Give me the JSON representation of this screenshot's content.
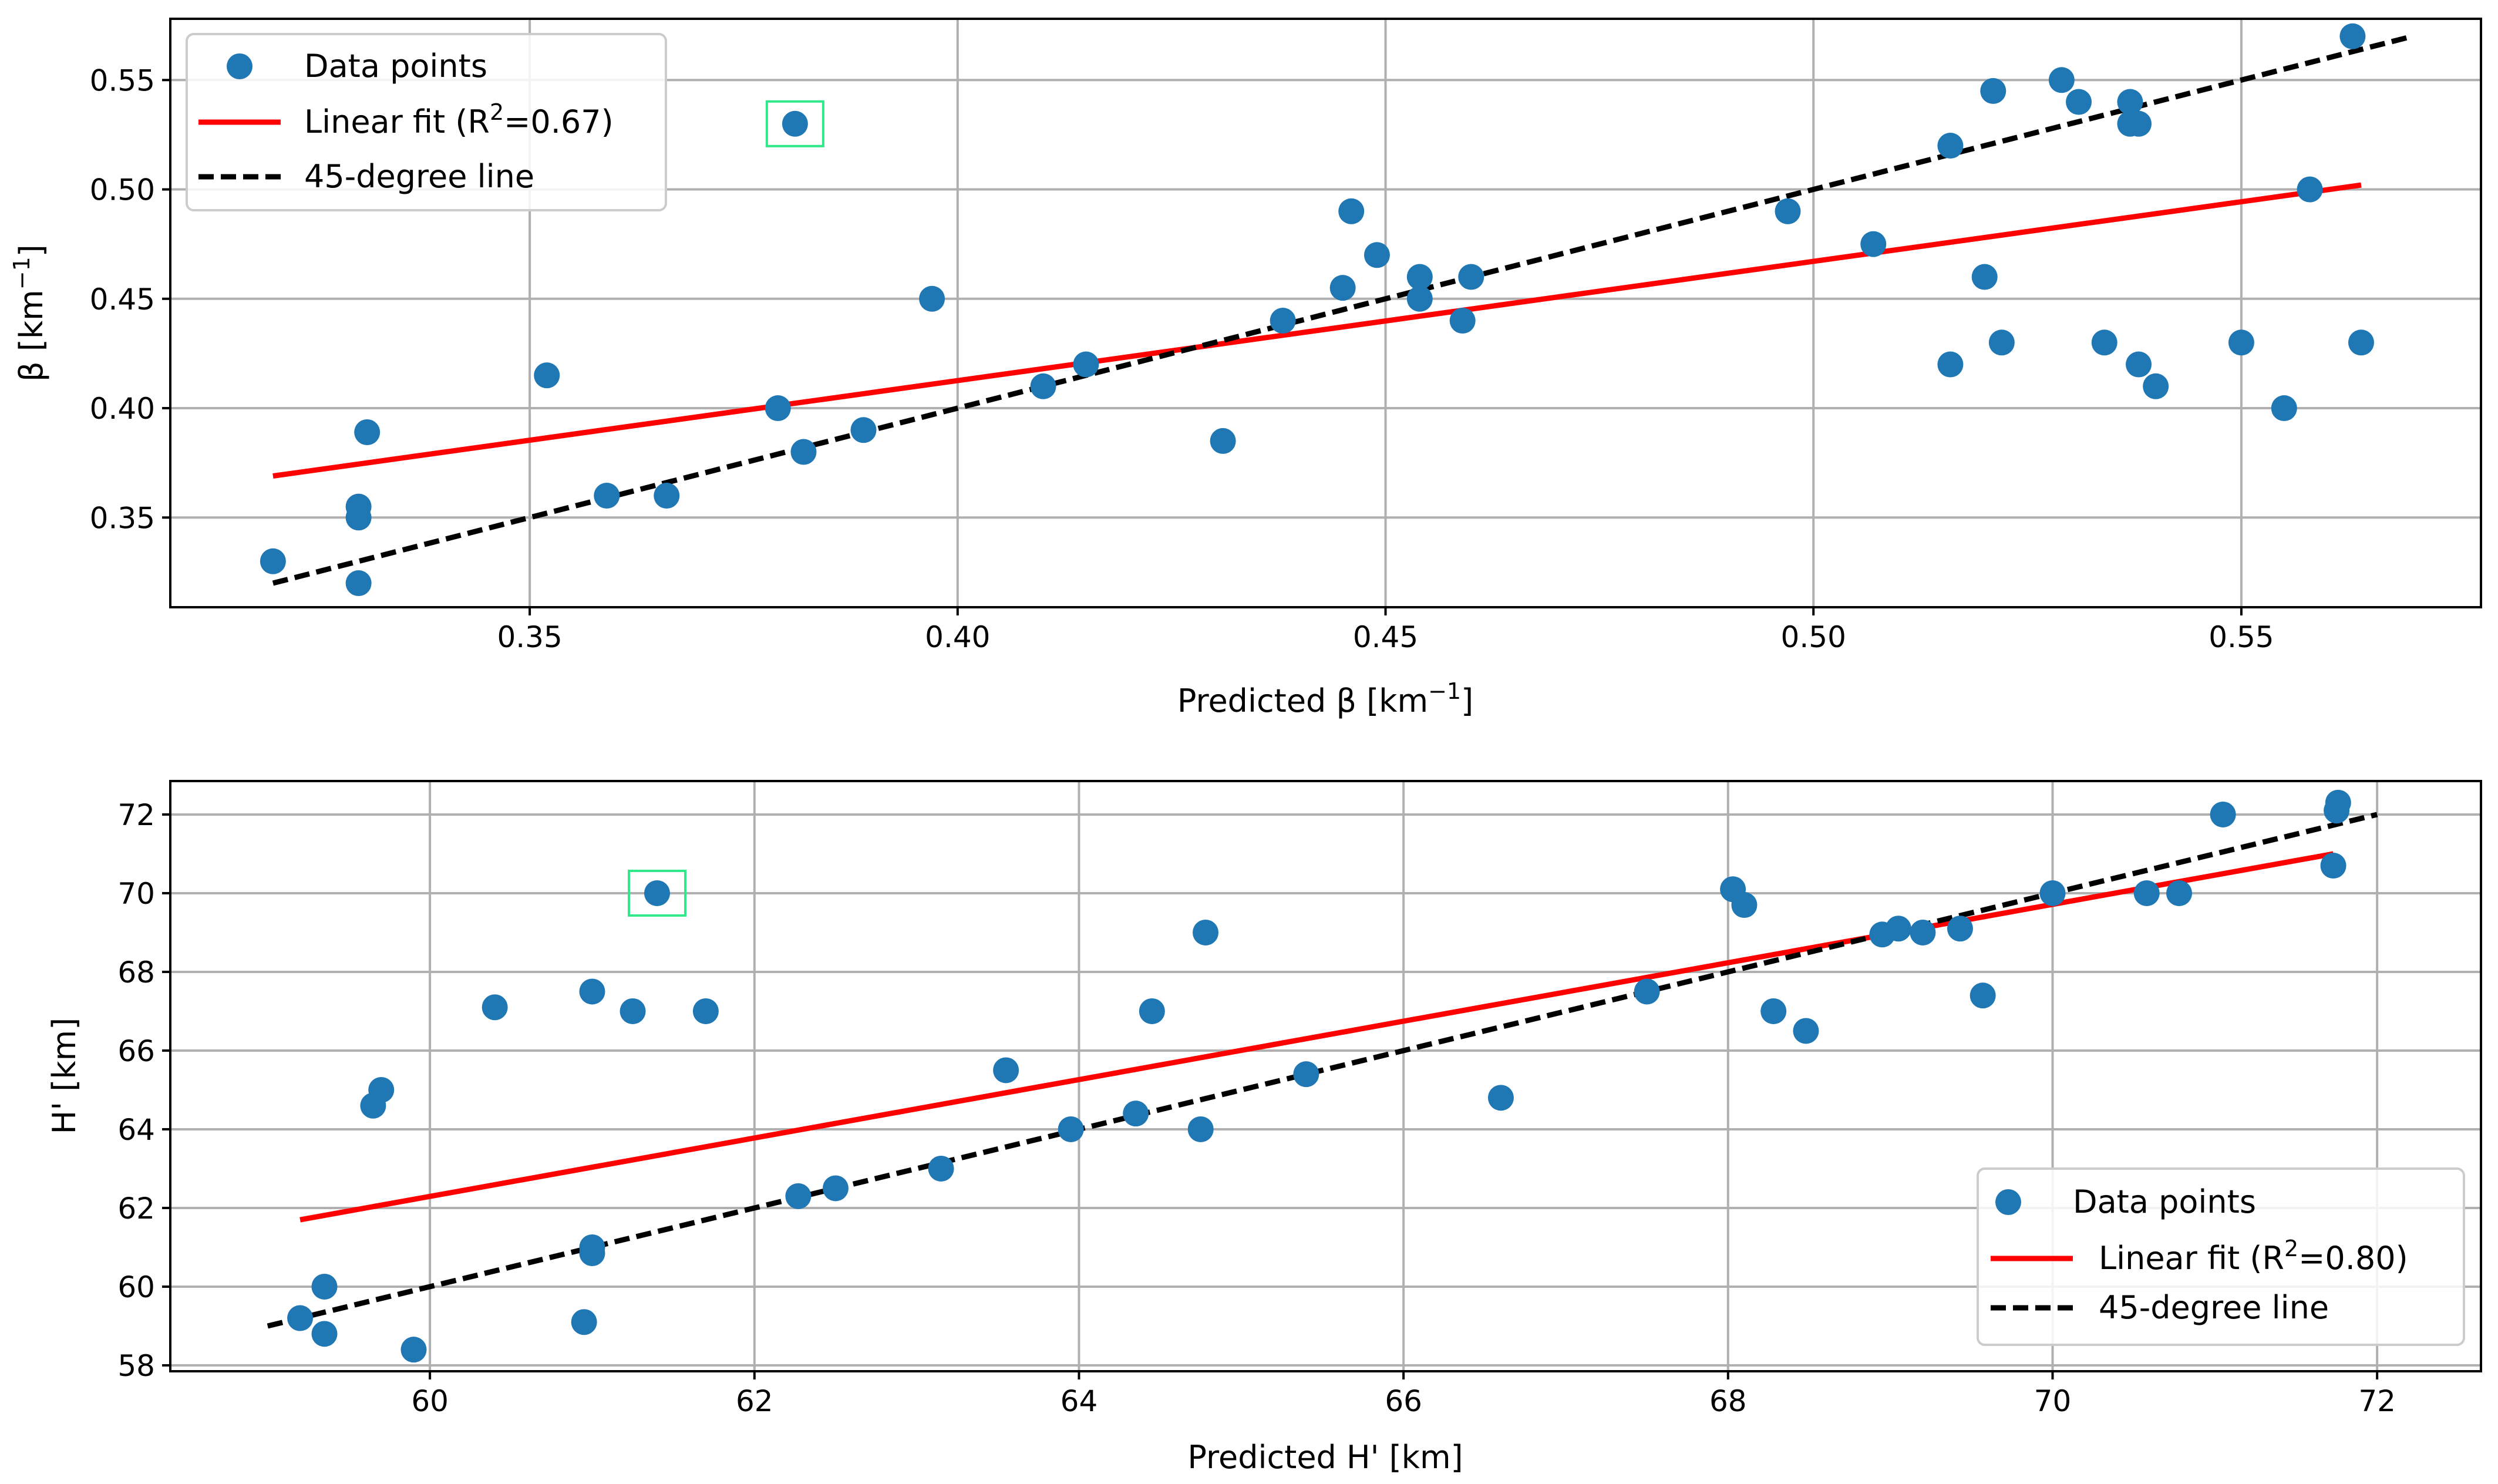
{
  "chart_data": [
    {
      "type": "scatter",
      "xlabel": "Predicted β [km",
      "xlabel_sup": "−1",
      "xlabel_end": "]",
      "ylabel": "β [km",
      "ylabel_sup": "−1",
      "ylabel_end": "]",
      "xlim": [
        0.308,
        0.578
      ],
      "ylim": [
        0.309,
        0.578
      ],
      "xticks": [
        0.35,
        0.4,
        0.45,
        0.5,
        0.55
      ],
      "xtick_labels": [
        "0.35",
        "0.40",
        "0.45",
        "0.50",
        "0.55"
      ],
      "yticks": [
        0.35,
        0.4,
        0.45,
        0.5,
        0.55
      ],
      "ytick_labels": [
        "0.35",
        "0.40",
        "0.45",
        "0.50",
        "0.55"
      ],
      "grid": true,
      "legend_position": "upper-left",
      "legend": {
        "scatter_label": "Data points",
        "fit_label": "Linear fit (R",
        "fit_sup": "2",
        "fit_label_end": "=0.67)",
        "ref_label": "45-degree line"
      },
      "colors": {
        "points": "#1f77b4",
        "fit": "#ff0000",
        "ref": "#000000",
        "highlight": "#2ee88a"
      },
      "points": [
        [
          0.32,
          0.33
        ],
        [
          0.33,
          0.32
        ],
        [
          0.33,
          0.35
        ],
        [
          0.33,
          0.355
        ],
        [
          0.331,
          0.389
        ],
        [
          0.352,
          0.415
        ],
        [
          0.359,
          0.36
        ],
        [
          0.366,
          0.36
        ],
        [
          0.379,
          0.4
        ],
        [
          0.382,
          0.38
        ],
        [
          0.381,
          0.53
        ],
        [
          0.389,
          0.39
        ],
        [
          0.397,
          0.45
        ],
        [
          0.41,
          0.41
        ],
        [
          0.415,
          0.42
        ],
        [
          0.431,
          0.385
        ],
        [
          0.438,
          0.44
        ],
        [
          0.445,
          0.455
        ],
        [
          0.446,
          0.49
        ],
        [
          0.449,
          0.47
        ],
        [
          0.454,
          0.45
        ],
        [
          0.454,
          0.46
        ],
        [
          0.459,
          0.44
        ],
        [
          0.46,
          0.46
        ],
        [
          0.497,
          0.49
        ],
        [
          0.507,
          0.475
        ],
        [
          0.516,
          0.42
        ],
        [
          0.516,
          0.52
        ],
        [
          0.52,
          0.46
        ],
        [
          0.521,
          0.545
        ],
        [
          0.522,
          0.43
        ],
        [
          0.529,
          0.55
        ],
        [
          0.531,
          0.54
        ],
        [
          0.534,
          0.43
        ],
        [
          0.537,
          0.54
        ],
        [
          0.537,
          0.53
        ],
        [
          0.538,
          0.53
        ],
        [
          0.538,
          0.42
        ],
        [
          0.54,
          0.41
        ],
        [
          0.55,
          0.43
        ],
        [
          0.555,
          0.4
        ],
        [
          0.558,
          0.5
        ],
        [
          0.563,
          0.57
        ],
        [
          0.564,
          0.43
        ]
      ],
      "fit_line": [
        [
          0.32,
          0.369
        ],
        [
          0.564,
          0.502
        ]
      ],
      "ref_line": [
        [
          0.32,
          0.32
        ],
        [
          0.57,
          0.57
        ]
      ],
      "highlight": [
        0.381,
        0.53
      ]
    },
    {
      "type": "scatter",
      "xlabel": "Predicted H' [km]",
      "ylabel": "H' [km]",
      "xlim": [
        58.4,
        72.64
      ],
      "ylim": [
        57.85,
        72.85
      ],
      "xticks": [
        60,
        62,
        64,
        66,
        68,
        70,
        72
      ],
      "xtick_labels": [
        "60",
        "62",
        "64",
        "66",
        "68",
        "70",
        "72"
      ],
      "yticks": [
        58,
        60,
        62,
        64,
        66,
        68,
        70,
        72
      ],
      "ytick_labels": [
        "58",
        "60",
        "62",
        "64",
        "66",
        "68",
        "70",
        "72"
      ],
      "grid": true,
      "legend_position": "lower-right",
      "legend": {
        "scatter_label": "Data points",
        "fit_label": "Linear fit (R",
        "fit_sup": "2",
        "fit_label_end": "=0.80)",
        "ref_label": "45-degree line"
      },
      "colors": {
        "points": "#1f77b4",
        "fit": "#ff0000",
        "ref": "#000000",
        "highlight": "#2ee88a"
      },
      "points": [
        [
          59.2,
          59.2
        ],
        [
          59.35,
          58.8
        ],
        [
          59.35,
          60.0
        ],
        [
          59.65,
          64.6
        ],
        [
          59.7,
          65.0
        ],
        [
          59.9,
          58.4
        ],
        [
          60.4,
          67.1
        ],
        [
          60.95,
          59.1
        ],
        [
          61.0,
          61.0
        ],
        [
          61.0,
          60.85
        ],
        [
          61.0,
          67.5
        ],
        [
          61.25,
          67.0
        ],
        [
          61.4,
          70.0
        ],
        [
          61.7,
          67.0
        ],
        [
          62.27,
          62.3
        ],
        [
          62.5,
          62.5
        ],
        [
          63.15,
          63.0
        ],
        [
          63.55,
          65.5
        ],
        [
          63.95,
          64.0
        ],
        [
          64.35,
          64.4
        ],
        [
          64.45,
          67.0
        ],
        [
          64.75,
          64.0
        ],
        [
          64.78,
          69.0
        ],
        [
          65.4,
          65.4
        ],
        [
          66.6,
          64.8
        ],
        [
          67.5,
          67.5
        ],
        [
          68.03,
          70.1
        ],
        [
          68.1,
          69.7
        ],
        [
          68.28,
          67.0
        ],
        [
          68.48,
          66.5
        ],
        [
          68.95,
          68.95
        ],
        [
          69.05,
          69.1
        ],
        [
          69.2,
          69.0
        ],
        [
          69.43,
          69.1
        ],
        [
          69.57,
          67.4
        ],
        [
          70.0,
          70.0
        ],
        [
          70.58,
          70.0
        ],
        [
          70.78,
          70.0
        ],
        [
          71.05,
          72.0
        ],
        [
          71.73,
          70.7
        ],
        [
          71.75,
          72.1
        ],
        [
          71.76,
          72.3
        ]
      ],
      "fit_line": [
        [
          59.2,
          61.7
        ],
        [
          71.73,
          71.0
        ]
      ],
      "ref_line": [
        [
          59.0,
          59.0
        ],
        [
          72.0,
          72.0
        ]
      ],
      "highlight": [
        61.4,
        70.0
      ]
    }
  ]
}
